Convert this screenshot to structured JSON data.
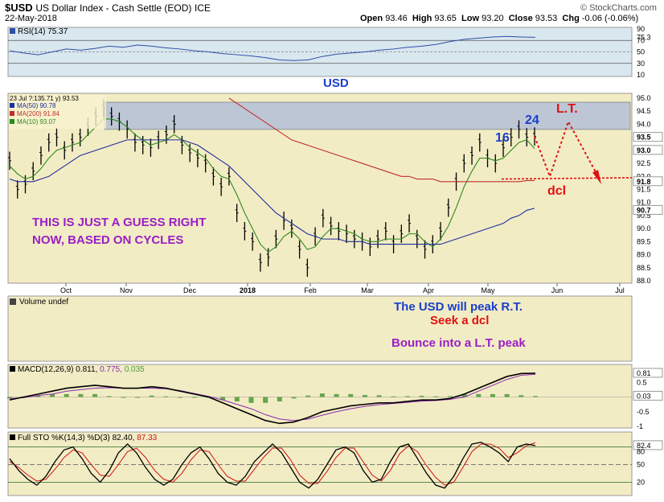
{
  "header": {
    "symbol": "$USD",
    "description": "US Dollar Index - Cash Settle (EOD)",
    "exchange": "ICE",
    "date": "22-May-2018",
    "open_label": "Open",
    "open": "93.46",
    "high_label": "High",
    "high": "93.65",
    "low_label": "Low",
    "low": "93.20",
    "close_label": "Close",
    "close": "93.53",
    "chg_label": "Chg",
    "chg": "-0.06 (-0.06%)",
    "brand": "© StockCharts.com"
  },
  "colors": {
    "panel_bg": "#f2ecc4",
    "rsi_bg": "#d9e7ee",
    "resistance_band": "#b4c0d8",
    "price_black": "#000000",
    "ma50": "#1f2d9c",
    "ma200": "#c0302c",
    "ma10": "#2a8a1e",
    "annotation_red": "#e01010",
    "annotation_blue": "#1a3ecc",
    "annotation_purple": "#9a1ec8",
    "volume_green": "#4c9a3a"
  },
  "annotations": {
    "usd": "USD",
    "guess_line1": "THIS IS JUST A GUESS RIGHT",
    "guess_line2": "NOW, BASED ON CYCLES",
    "c16": "16",
    "c24": "24",
    "lt": "L.T.",
    "dcl": "dcl",
    "note1": "The USD will peak R.T.",
    "note2": "Seek a dcl",
    "note3": "Bounce into a L.T. peak"
  },
  "chart_data": [
    {
      "type": "line",
      "panel": "rsi",
      "title": "RSI(14) 75.37",
      "label_name": "RSI(14)",
      "label_value": "75.37",
      "yticks": [
        "90",
        "75.3",
        "70",
        "50",
        "30",
        "10"
      ],
      "levels": [
        70,
        50,
        30
      ],
      "series": [
        {
          "name": "RSI(14)",
          "values": [
            52,
            48,
            45,
            50,
            55,
            53,
            56,
            60,
            58,
            62,
            60,
            57,
            55,
            52,
            50,
            47,
            45,
            43,
            40,
            36,
            35,
            36,
            42,
            46,
            48,
            50,
            53,
            55,
            58,
            60,
            63,
            68,
            72,
            74,
            76,
            77,
            76,
            75.37
          ]
        }
      ]
    },
    {
      "type": "line",
      "panel": "price",
      "ylim": [
        88.0,
        95.0
      ],
      "yticks": [
        "95.0",
        "94.5",
        "94.0",
        "93.5",
        "93.0",
        "92.5",
        "92.0",
        "91.5",
        "91.0",
        "90.5",
        "90.0",
        "89.5",
        "89.0",
        "88.5",
        "88.0"
      ],
      "price_labels": [
        "93.5",
        "93.0",
        "91.8",
        "90.7"
      ],
      "xticks": [
        "Oct",
        "Nov",
        "Dec",
        "2018",
        "Feb",
        "Mar",
        "Apr",
        "May",
        "Jun",
        "Jul"
      ],
      "legend": [
        {
          "label": "23 Jul ?:135.71 y) 93.53"
        },
        {
          "label": "MA(50) 90.78"
        },
        {
          "label": "MA(200) 91.84"
        },
        {
          "label": "MA(10) 93.07"
        }
      ],
      "series": [
        {
          "name": "$USD",
          "values": [
            92.6,
            91.5,
            91.7,
            92.2,
            92.8,
            93.3,
            93.5,
            93.0,
            93.3,
            93.5,
            93.9,
            94.3,
            94.6,
            94.3,
            94.1,
            93.8,
            93.3,
            93.2,
            93.1,
            93.4,
            93.6,
            94.0,
            93.2,
            92.9,
            92.7,
            92.5,
            92.0,
            91.6,
            92.0,
            90.6,
            89.9,
            89.5,
            88.7,
            88.9,
            89.6,
            90.3,
            90.0,
            89.2,
            88.5,
            89.7,
            90.4,
            90.1,
            89.9,
            89.8,
            89.6,
            89.5,
            89.3,
            89.6,
            89.9,
            89.4,
            89.8,
            90.2,
            89.6,
            89.2,
            89.4,
            89.9,
            90.8,
            91.8,
            92.5,
            92.8,
            93.3,
            92.7,
            92.5,
            93.1,
            93.5,
            93.8,
            93.5,
            93.53
          ]
        },
        {
          "name": "MA(10)",
          "values": [
            92.4,
            92.1,
            91.9,
            92.0,
            92.3,
            92.7,
            93.0,
            93.1,
            93.2,
            93.3,
            93.6,
            93.9,
            94.2,
            94.2,
            94.1,
            93.9,
            93.6,
            93.4,
            93.2,
            93.3,
            93.4,
            93.6,
            93.4,
            93.1,
            92.9,
            92.7,
            92.3,
            92.0,
            91.9,
            91.3,
            90.6,
            90.0,
            89.4,
            89.1,
            89.3,
            89.7,
            89.9,
            89.6,
            89.2,
            89.3,
            89.7,
            90.0,
            90.0,
            89.9,
            89.8,
            89.6,
            89.5,
            89.5,
            89.6,
            89.6,
            89.6,
            89.8,
            89.8,
            89.5,
            89.3,
            89.6,
            90.1,
            90.8,
            91.6,
            92.2,
            92.7,
            92.7,
            92.6,
            92.7,
            93.0,
            93.3,
            93.4,
            93.07
          ]
        },
        {
          "name": "MA(50)",
          "values": [
            91.9,
            91.8,
            91.8,
            91.8,
            91.9,
            92.0,
            92.2,
            92.4,
            92.6,
            92.8,
            92.9,
            93.0,
            93.1,
            93.2,
            93.3,
            93.4,
            93.4,
            93.4,
            93.4,
            93.4,
            93.4,
            93.4,
            93.4,
            93.3,
            93.2,
            93.0,
            92.8,
            92.6,
            92.4,
            92.1,
            91.8,
            91.5,
            91.2,
            90.9,
            90.6,
            90.4,
            90.2,
            90.0,
            89.8,
            89.7,
            89.6,
            89.6,
            89.6,
            89.5,
            89.5,
            89.5,
            89.4,
            89.4,
            89.4,
            89.4,
            89.4,
            89.4,
            89.4,
            89.4,
            89.4,
            89.4,
            89.5,
            89.6,
            89.7,
            89.8,
            89.9,
            90.0,
            90.1,
            90.2,
            90.4,
            90.5,
            90.7,
            90.78
          ]
        },
        {
          "name": "MA(200)",
          "values": [
            null,
            null,
            null,
            null,
            null,
            null,
            null,
            null,
            null,
            null,
            null,
            null,
            null,
            null,
            null,
            null,
            null,
            null,
            null,
            null,
            null,
            null,
            null,
            null,
            null,
            null,
            null,
            null,
            95.0,
            94.8,
            94.6,
            94.4,
            94.2,
            94.0,
            93.8,
            93.6,
            93.4,
            93.3,
            93.2,
            93.1,
            93.0,
            92.9,
            92.8,
            92.7,
            92.6,
            92.5,
            92.4,
            92.3,
            92.2,
            92.1,
            92.0,
            92.0,
            91.9,
            91.9,
            91.9,
            91.8,
            91.8,
            91.8,
            91.8,
            91.8,
            91.8,
            91.8,
            91.8,
            91.8,
            91.8,
            91.8,
            91.84,
            91.84
          ]
        },
        {
          "name": "Projection",
          "values": [
            93.53,
            92.0,
            94.1,
            92.0
          ]
        }
      ]
    },
    {
      "type": "bar",
      "panel": "volume",
      "title": "Volume undef"
    },
    {
      "type": "line",
      "panel": "macd",
      "title": "MACD(12,26,9) 0.811, 0.775, 0.035",
      "label_name": "MACD(12,26,9)",
      "label_values": [
        "0.811",
        "0.775",
        "0.035"
      ],
      "yticks": [
        "0.81",
        "0.5",
        "0.03",
        "-0.5",
        "-1"
      ],
      "series": [
        {
          "name": "MACD",
          "values": [
            -0.1,
            0.0,
            0.1,
            0.2,
            0.3,
            0.35,
            0.4,
            0.35,
            0.3,
            0.3,
            0.35,
            0.3,
            0.2,
            0.1,
            0.0,
            -0.2,
            -0.4,
            -0.6,
            -0.8,
            -0.9,
            -0.85,
            -0.7,
            -0.5,
            -0.4,
            -0.3,
            -0.25,
            -0.2,
            -0.2,
            -0.15,
            -0.1,
            -0.1,
            -0.05,
            0.1,
            0.3,
            0.5,
            0.7,
            0.8,
            0.811
          ]
        },
        {
          "name": "Signal",
          "values": [
            -0.05,
            -0.02,
            0.05,
            0.1,
            0.2,
            0.25,
            0.3,
            0.32,
            0.3,
            0.3,
            0.3,
            0.28,
            0.22,
            0.12,
            0.02,
            -0.1,
            -0.25,
            -0.4,
            -0.6,
            -0.75,
            -0.8,
            -0.75,
            -0.62,
            -0.5,
            -0.4,
            -0.32,
            -0.26,
            -0.22,
            -0.18,
            -0.14,
            -0.12,
            -0.08,
            0.0,
            0.2,
            0.4,
            0.6,
            0.74,
            0.775
          ]
        },
        {
          "name": "Histogram",
          "values": [
            -0.05,
            0.02,
            0.05,
            0.1,
            0.1,
            0.1,
            0.1,
            0.03,
            0.0,
            0.0,
            0.05,
            0.02,
            -0.02,
            -0.02,
            -0.02,
            -0.1,
            -0.15,
            -0.2,
            -0.2,
            -0.15,
            -0.05,
            0.05,
            0.12,
            0.1,
            0.1,
            0.07,
            0.06,
            0.02,
            0.03,
            0.04,
            0.02,
            0.03,
            0.1,
            0.1,
            0.1,
            0.1,
            0.06,
            0.035
          ]
        }
      ]
    },
    {
      "type": "line",
      "panel": "stochastic",
      "title": "Full STO %K(14,3) %D(3) 82.40, 87.33",
      "label_name": "Full STO %K(14,3) %D(3)",
      "label_values": [
        "82.40",
        "87.33"
      ],
      "yticks": [
        "82.4",
        "80",
        "50",
        "20"
      ],
      "levels": [
        80,
        50,
        20
      ],
      "series": [
        {
          "name": "%K",
          "values": [
            60,
            40,
            25,
            15,
            30,
            55,
            75,
            80,
            60,
            35,
            20,
            40,
            70,
            85,
            70,
            45,
            25,
            15,
            25,
            50,
            70,
            80,
            60,
            35,
            20,
            15,
            30,
            55,
            70,
            85,
            70,
            45,
            20,
            10,
            25,
            50,
            75,
            80,
            70,
            40,
            20,
            25,
            55,
            80,
            85,
            60,
            35,
            15,
            10,
            30,
            60,
            85,
            88,
            80,
            70,
            55,
            80,
            85,
            82.4
          ]
        },
        {
          "name": "%D",
          "values": [
            55,
            45,
            32,
            22,
            25,
            42,
            62,
            75,
            70,
            50,
            32,
            30,
            50,
            72,
            78,
            62,
            40,
            25,
            20,
            35,
            58,
            75,
            72,
            50,
            30,
            22,
            22,
            42,
            62,
            78,
            78,
            58,
            32,
            18,
            18,
            38,
            62,
            78,
            78,
            55,
            32,
            22,
            40,
            68,
            82,
            72,
            48,
            28,
            15,
            20,
            45,
            72,
            85,
            85,
            78,
            62,
            70,
            82,
            87.33
          ]
        }
      ]
    }
  ]
}
